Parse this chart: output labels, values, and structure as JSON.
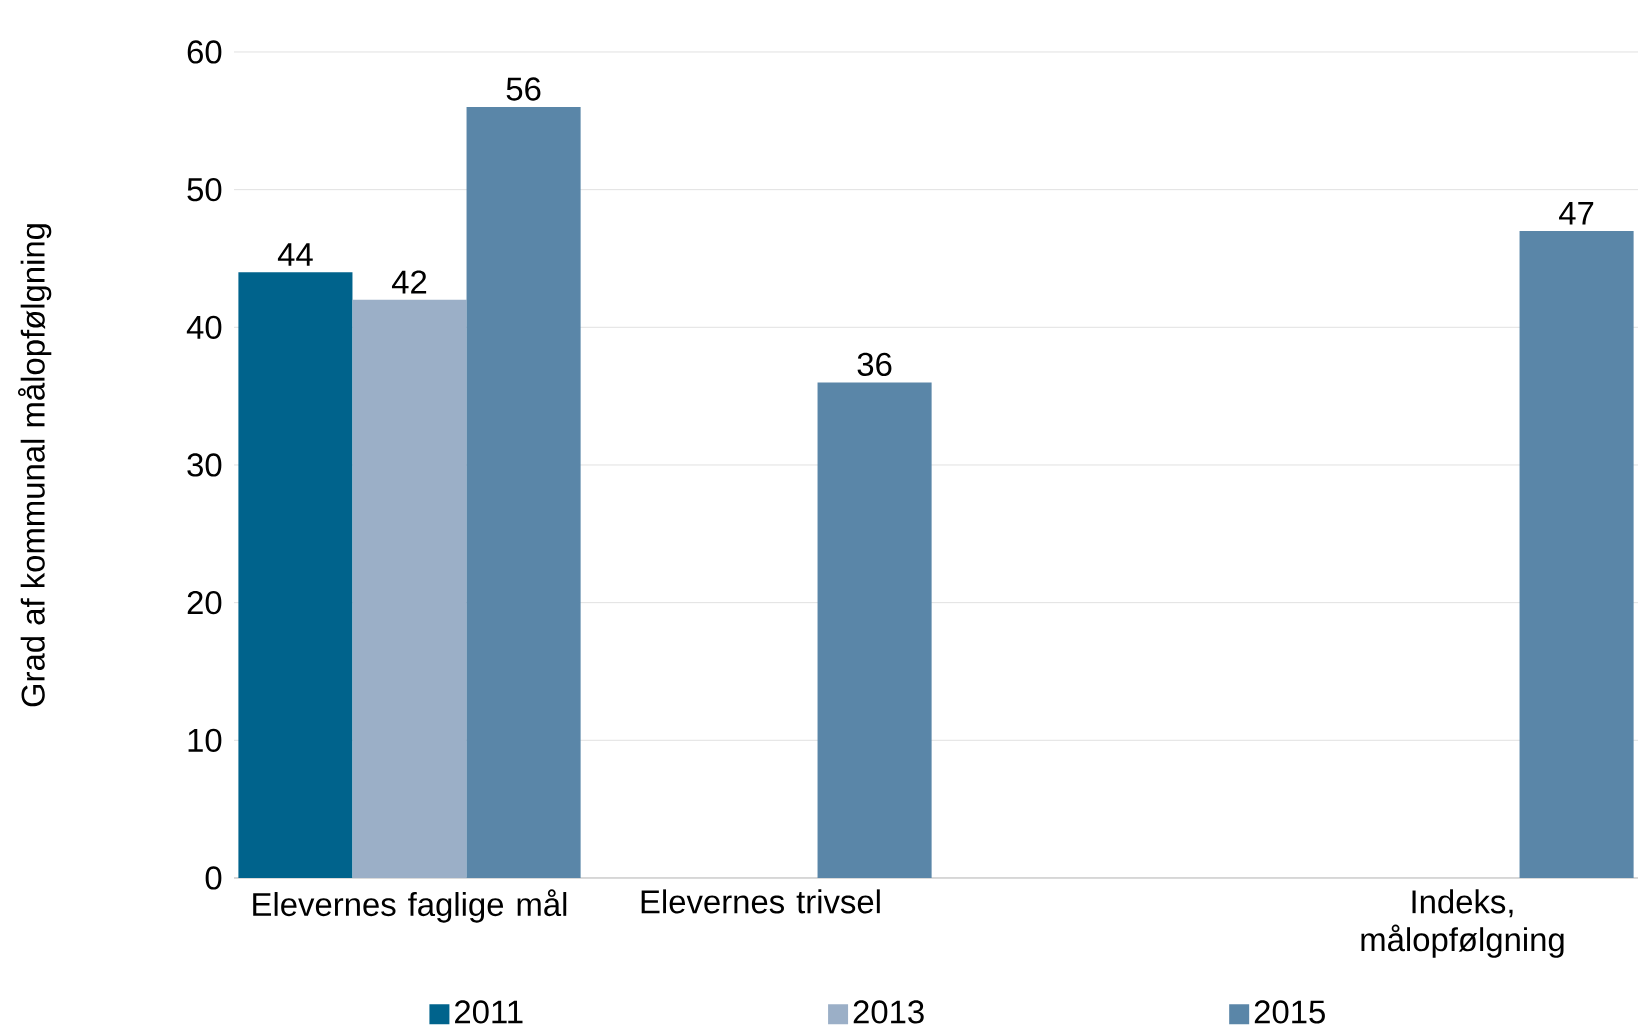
{
  "chart_data": {
    "type": "bar",
    "ylabel": "Grad af kommunal målopfølgning",
    "categories": [
      "Elevernes faglige mål",
      "Elevernes trivsel",
      null,
      "Indeks, målopfølgning"
    ],
    "series": [
      {
        "name": "2011",
        "color": "#00638c",
        "values": [
          44,
          null,
          null,
          null
        ]
      },
      {
        "name": "2013",
        "color": "#9bafc7",
        "values": [
          42,
          null,
          null,
          null
        ]
      },
      {
        "name": "2015",
        "color": "#5a86a8",
        "values": [
          56,
          36,
          null,
          47
        ]
      }
    ],
    "ylim": [
      0,
      60
    ],
    "yticks": [
      0,
      10,
      20,
      30,
      40,
      50,
      60
    ],
    "grid": "y",
    "legend": "bottom",
    "data_labels": true
  }
}
